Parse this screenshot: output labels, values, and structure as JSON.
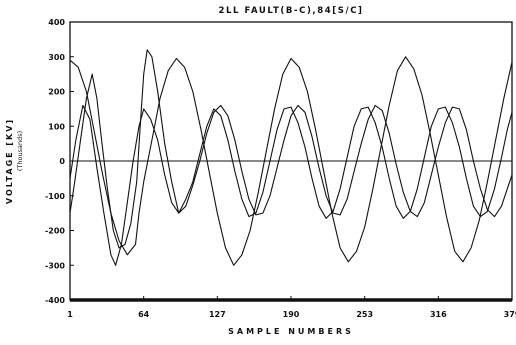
{
  "chart_data": {
    "type": "line",
    "title": "2LL FAULT(B-C),84[S/C]",
    "xlabel": "SAMPLE NUMBERS",
    "ylabel": "VOLTAGE [KV]",
    "ylabel_sub": "(Thousands)",
    "xlim": [
      1,
      379
    ],
    "ylim": [
      -400,
      400
    ],
    "x_ticks": [
      1,
      64,
      127,
      190,
      253,
      316,
      379
    ],
    "y_ticks": [
      400,
      300,
      200,
      100,
      0,
      -100,
      -200,
      -300,
      -400
    ],
    "grid": false,
    "series": [
      {
        "color": "#111111",
        "points": [
          [
            1,
            290
          ],
          [
            8,
            270
          ],
          [
            15,
            200
          ],
          [
            22,
            80
          ],
          [
            29,
            -40
          ],
          [
            36,
            -150
          ],
          [
            43,
            -230
          ],
          [
            50,
            -270
          ],
          [
            57,
            -240
          ],
          [
            60,
            -150
          ],
          [
            64,
            -60
          ],
          [
            71,
            60
          ],
          [
            78,
            180
          ],
          [
            85,
            260
          ],
          [
            92,
            295
          ],
          [
            99,
            270
          ],
          [
            106,
            200
          ],
          [
            113,
            90
          ],
          [
            120,
            -30
          ],
          [
            127,
            -150
          ],
          [
            134,
            -250
          ],
          [
            141,
            -300
          ],
          [
            148,
            -270
          ],
          [
            155,
            -200
          ],
          [
            162,
            -90
          ],
          [
            169,
            30
          ],
          [
            176,
            150
          ],
          [
            183,
            250
          ],
          [
            190,
            295
          ],
          [
            197,
            270
          ],
          [
            204,
            200
          ],
          [
            211,
            90
          ],
          [
            218,
            -30
          ],
          [
            225,
            -150
          ],
          [
            232,
            -250
          ],
          [
            239,
            -290
          ],
          [
            246,
            -260
          ],
          [
            253,
            -190
          ],
          [
            260,
            -80
          ],
          [
            267,
            40
          ],
          [
            274,
            160
          ],
          [
            281,
            260
          ],
          [
            288,
            300
          ],
          [
            295,
            265
          ],
          [
            302,
            190
          ],
          [
            309,
            80
          ],
          [
            316,
            -40
          ],
          [
            323,
            -160
          ],
          [
            330,
            -260
          ],
          [
            337,
            -290
          ],
          [
            344,
            -250
          ],
          [
            351,
            -170
          ],
          [
            358,
            -60
          ],
          [
            365,
            60
          ],
          [
            372,
            180
          ],
          [
            379,
            285
          ]
        ]
      },
      {
        "color": "#111111",
        "points": [
          [
            1,
            -150
          ],
          [
            5,
            -60
          ],
          [
            10,
            60
          ],
          [
            15,
            180
          ],
          [
            20,
            250
          ],
          [
            24,
            180
          ],
          [
            28,
            60
          ],
          [
            33,
            -80
          ],
          [
            38,
            -200
          ],
          [
            43,
            -250
          ],
          [
            48,
            -240
          ],
          [
            53,
            -180
          ],
          [
            58,
            -60
          ],
          [
            61,
            100
          ],
          [
            64,
            250
          ],
          [
            67,
            320
          ],
          [
            71,
            300
          ],
          [
            76,
            200
          ],
          [
            82,
            50
          ],
          [
            88,
            -60
          ],
          [
            94,
            -150
          ],
          [
            100,
            -110
          ],
          [
            106,
            -60
          ],
          [
            112,
            20
          ],
          [
            118,
            100
          ],
          [
            124,
            150
          ],
          [
            130,
            130
          ],
          [
            136,
            60
          ],
          [
            142,
            -30
          ],
          [
            148,
            -110
          ],
          [
            154,
            -160
          ],
          [
            160,
            -150
          ],
          [
            166,
            -90
          ],
          [
            172,
            0
          ],
          [
            178,
            90
          ],
          [
            184,
            150
          ],
          [
            190,
            155
          ],
          [
            196,
            110
          ],
          [
            202,
            40
          ],
          [
            208,
            -50
          ],
          [
            214,
            -130
          ],
          [
            220,
            -165
          ],
          [
            226,
            -145
          ],
          [
            232,
            -80
          ],
          [
            238,
            10
          ],
          [
            244,
            100
          ],
          [
            250,
            150
          ],
          [
            256,
            155
          ],
          [
            262,
            110
          ],
          [
            268,
            40
          ],
          [
            274,
            -50
          ],
          [
            280,
            -130
          ],
          [
            286,
            -165
          ],
          [
            292,
            -145
          ],
          [
            298,
            -80
          ],
          [
            304,
            10
          ],
          [
            310,
            100
          ],
          [
            316,
            150
          ],
          [
            322,
            155
          ],
          [
            328,
            110
          ],
          [
            334,
            40
          ],
          [
            340,
            -50
          ],
          [
            346,
            -130
          ],
          [
            352,
            -160
          ],
          [
            358,
            -145
          ],
          [
            364,
            -80
          ],
          [
            370,
            10
          ],
          [
            375,
            90
          ],
          [
            379,
            140
          ]
        ]
      },
      {
        "color": "#111111",
        "points": [
          [
            1,
            -50
          ],
          [
            6,
            60
          ],
          [
            12,
            160
          ],
          [
            18,
            120
          ],
          [
            24,
            -20
          ],
          [
            30,
            -150
          ],
          [
            36,
            -270
          ],
          [
            40,
            -300
          ],
          [
            45,
            -240
          ],
          [
            50,
            -120
          ],
          [
            55,
            0
          ],
          [
            60,
            100
          ],
          [
            64,
            150
          ],
          [
            70,
            120
          ],
          [
            76,
            60
          ],
          [
            82,
            -40
          ],
          [
            88,
            -120
          ],
          [
            94,
            -150
          ],
          [
            100,
            -130
          ],
          [
            106,
            -70
          ],
          [
            112,
            0
          ],
          [
            118,
            80
          ],
          [
            124,
            140
          ],
          [
            130,
            160
          ],
          [
            136,
            130
          ],
          [
            142,
            60
          ],
          [
            148,
            -30
          ],
          [
            154,
            -110
          ],
          [
            160,
            -155
          ],
          [
            166,
            -150
          ],
          [
            172,
            -100
          ],
          [
            178,
            -20
          ],
          [
            184,
            60
          ],
          [
            190,
            130
          ],
          [
            196,
            160
          ],
          [
            202,
            140
          ],
          [
            208,
            70
          ],
          [
            214,
            -20
          ],
          [
            220,
            -100
          ],
          [
            226,
            -150
          ],
          [
            232,
            -155
          ],
          [
            238,
            -110
          ],
          [
            244,
            -30
          ],
          [
            250,
            50
          ],
          [
            256,
            120
          ],
          [
            262,
            160
          ],
          [
            268,
            145
          ],
          [
            274,
            80
          ],
          [
            280,
            -10
          ],
          [
            286,
            -90
          ],
          [
            292,
            -145
          ],
          [
            298,
            -160
          ],
          [
            304,
            -120
          ],
          [
            310,
            -40
          ],
          [
            316,
            40
          ],
          [
            322,
            110
          ],
          [
            328,
            155
          ],
          [
            334,
            150
          ],
          [
            340,
            90
          ],
          [
            346,
            0
          ],
          [
            352,
            -80
          ],
          [
            358,
            -140
          ],
          [
            364,
            -160
          ],
          [
            370,
            -130
          ],
          [
            375,
            -80
          ],
          [
            379,
            -40
          ]
        ]
      }
    ]
  }
}
